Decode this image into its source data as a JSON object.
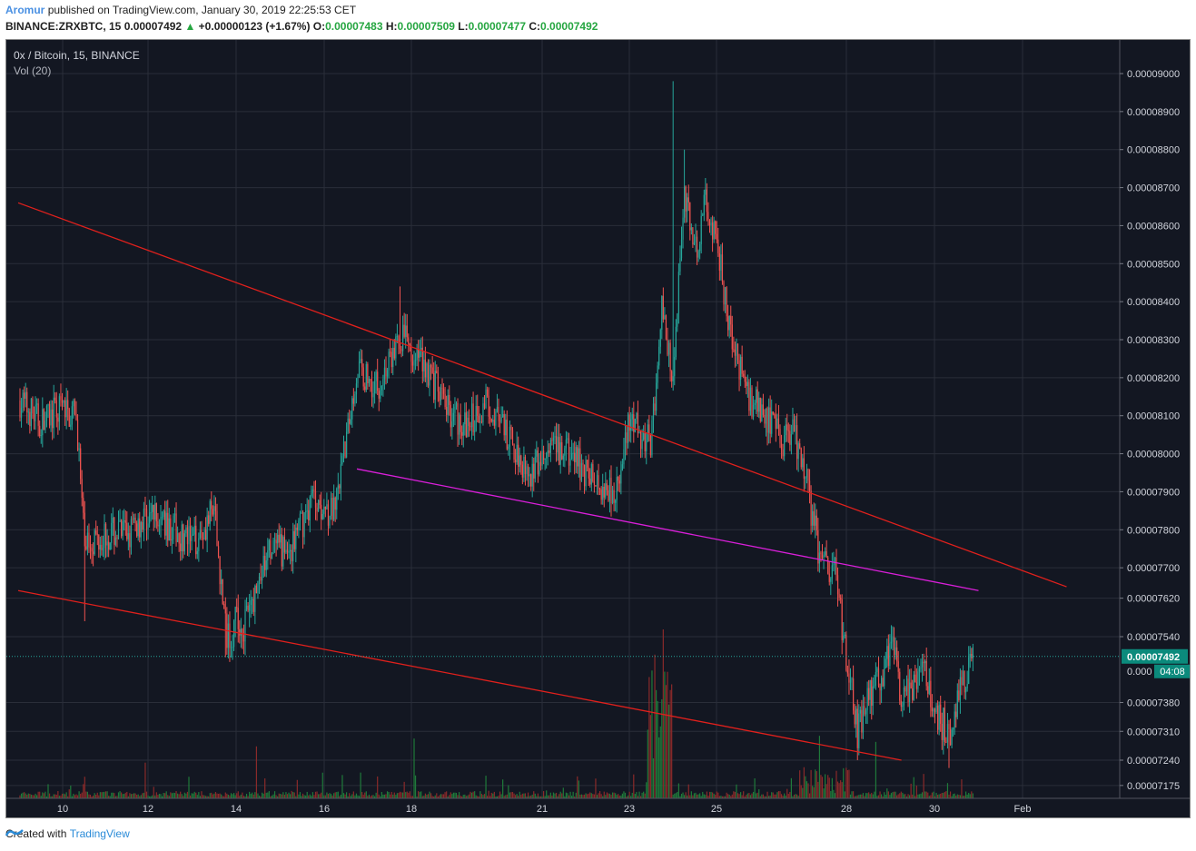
{
  "header": {
    "author": "Aromur",
    "published_text": "published on TradingView.com, January 30, 2019 22:25:53 CET",
    "symbol": "BINANCE:ZRXBTC, 15",
    "last_price": "0.00007492",
    "change": "+0.00000123 (+1.67%)",
    "open_label": "O:",
    "open": "0.00007483",
    "high_label": "H:",
    "high": "0.00007509",
    "low_label": "L:",
    "low": "0.00007477",
    "close_label": "C:",
    "close": "0.00007492"
  },
  "legend": {
    "title": "0x / Bitcoin, 15, BINANCE",
    "volume": "Vol (20)"
  },
  "footer": {
    "created_with": "Created with",
    "brand": "TradingView"
  },
  "colors": {
    "background": "#131722",
    "grid": "#2a2e39",
    "up": "#26a69a",
    "down": "#ef5350",
    "trendline": "#e0201c",
    "channel_line": "#d91fd9",
    "price_line": "#26a69a",
    "price_tag": "#0b8a7c"
  },
  "chart_data": {
    "type": "candlestick",
    "title": "0x / Bitcoin, 15, BINANCE",
    "x_ticks": [
      "10",
      "12",
      "14",
      "16",
      "18",
      "21",
      "23",
      "25",
      "28",
      "30",
      "Feb"
    ],
    "y_ticks": [
      "0.00009000",
      "0.00008900",
      "0.00008800",
      "0.00008700",
      "0.00008600",
      "0.00008500",
      "0.00008400",
      "0.00008300",
      "0.00008200",
      "0.00008100",
      "0.00008000",
      "0.00007900",
      "0.00007800",
      "0.00007700",
      "0.00007620",
      "0.00007540",
      "0.00007380",
      "0.00007310",
      "0.00007240",
      "0.00007175"
    ],
    "ylim": [
      7.16e-05,
      9.03e-05
    ],
    "current_price": "0.00007492",
    "current_price_partial": "0.000",
    "countdown": "04:08",
    "price_path": [
      [
        "Jan 9 00:00",
        8.14e-05
      ],
      [
        "Jan 9 12:00",
        8.08e-05
      ],
      [
        "Jan 10 00:00",
        8.12e-05
      ],
      [
        "Jan 10 08:00",
        8.09e-05
      ],
      [
        "Jan 10 12:00",
        7.77e-05
      ],
      [
        "Jan 11 00:00",
        7.79e-05
      ],
      [
        "Jan 11 12:00",
        7.79e-05
      ],
      [
        "Jan 12 00:00",
        7.84e-05
      ],
      [
        "Jan 12 12:00",
        7.81e-05
      ],
      [
        "Jan 13 00:00",
        7.76e-05
      ],
      [
        "Jan 13 12:00",
        7.85e-05
      ],
      [
        "Jan 13 18:00",
        7.55e-05
      ],
      [
        "Jan 14 06:00",
        7.57e-05
      ],
      [
        "Jan 14 18:00",
        7.74e-05
      ],
      [
        "Jan 15 06:00",
        7.75e-05
      ],
      [
        "Jan 15 18:00",
        7.89e-05
      ],
      [
        "Jan 16 06:00",
        7.84e-05
      ],
      [
        "Jan 16 12:00",
        8.03e-05
      ],
      [
        "Jan 16 18:00",
        8.22e-05
      ],
      [
        "Jan 17 06:00",
        8.18e-05
      ],
      [
        "Jan 17 18:00",
        8.31e-05
      ],
      [
        "Jan 18 06:00",
        8.25e-05
      ],
      [
        "Jan 18 18:00",
        8.13e-05
      ],
      [
        "Jan 19 06:00",
        8.07e-05
      ],
      [
        "Jan 19 18:00",
        8.14e-05
      ],
      [
        "Jan 20 06:00",
        8.03e-05
      ],
      [
        "Jan 20 18:00",
        7.95e-05
      ],
      [
        "Jan 21 06:00",
        8.01e-05
      ],
      [
        "Jan 21 18:00",
        7.99e-05
      ],
      [
        "Jan 22 06:00",
        7.92e-05
      ],
      [
        "Jan 22 18:00",
        7.91e-05
      ],
      [
        "Jan 23 00:00",
        8.08e-05
      ],
      [
        "Jan 23 12:00",
        8.03e-05
      ],
      [
        "Jan 23 18:00",
        8.38e-05
      ],
      [
        "Jan 24 00:00",
        8.2e-05
      ],
      [
        "Jan 24 06:00",
        8.7e-05
      ],
      [
        "Jan 24 12:00",
        8.52e-05
      ],
      [
        "Jan 24 18:00",
        8.66e-05
      ],
      [
        "Jan 25 00:00",
        8.56e-05
      ],
      [
        "Jan 25 08:00",
        8.3e-05
      ],
      [
        "Jan 25 18:00",
        8.15e-05
      ],
      [
        "Jan 26 06:00",
        8.08e-05
      ],
      [
        "Jan 26 12:00",
        8.03e-05
      ],
      [
        "Jan 26 18:00",
        8.07e-05
      ],
      [
        "Jan 27 00:00",
        7.97e-05
      ],
      [
        "Jan 27 08:00",
        7.76e-05
      ],
      [
        "Jan 27 12:00",
        7.7e-05
      ],
      [
        "Jan 27 18:00",
        7.69e-05
      ],
      [
        "Jan 28 00:00",
        7.48e-05
      ],
      [
        "Jan 28 06:00",
        7.31e-05
      ],
      [
        "Jan 28 12:00",
        7.4e-05
      ],
      [
        "Jan 28 18:00",
        7.43e-05
      ],
      [
        "Jan 29 00:00",
        7.52e-05
      ],
      [
        "Jan 29 06:00",
        7.41e-05
      ],
      [
        "Jan 29 12:00",
        7.4e-05
      ],
      [
        "Jan 29 18:00",
        7.47e-05
      ],
      [
        "Jan 30 00:00",
        7.35e-05
      ],
      [
        "Jan 30 08:00",
        7.31e-05
      ],
      [
        "Jan 30 16:00",
        7.43e-05
      ],
      [
        "Jan 30 21:00",
        7.49e-05
      ]
    ],
    "spikes": [
      [
        "Jan 17 18:00",
        8.44e-05
      ],
      [
        "Jan 24 00:00",
        8.98e-05
      ],
      [
        "Jan 24 06:00",
        8.8e-05
      ],
      [
        "Jan 28 06:00",
        7.24e-05
      ],
      [
        "Jan 10 12:00",
        7.57e-05
      ],
      [
        "Jan 13 18:00",
        7.49e-05
      ],
      [
        "Jan 30 08:00",
        7.22e-05
      ]
    ],
    "trendlines": [
      {
        "color": "red",
        "from": [
          "Jan 8 23:00",
          8.66e-05
        ],
        "to": [
          "Feb 2 00:00",
          7.65e-05
        ]
      },
      {
        "color": "red",
        "from": [
          "Jan 8 23:00",
          7.64e-05
        ],
        "to": [
          "Jan 29 06:00",
          7.24e-05
        ]
      },
      {
        "color": "magenta",
        "from": [
          "Jan 16 18:00",
          7.96e-05
        ],
        "to": [
          "Jan 31 00:00",
          7.64e-05
        ]
      }
    ],
    "volume": {
      "name": "Vol (20)",
      "peak": [
        "Jan 24 00:00"
      ]
    }
  }
}
